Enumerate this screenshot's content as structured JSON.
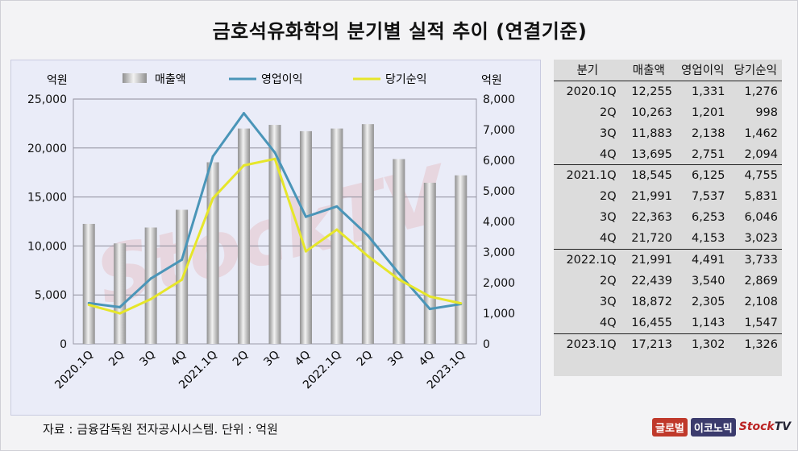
{
  "title": "금호석유화학의 분기별 실적 추이 (연결기준)",
  "source": "자료 : 금융감독원 전자공시시스템. 단위 : 억원",
  "logos": {
    "first": "글로벌",
    "second": "이코노믹",
    "stock": "Stock",
    "tv": "TV"
  },
  "watermark": "StockTV",
  "table": {
    "headers": [
      "분기",
      "매출액",
      "영업이익",
      "당기순익"
    ],
    "rows": [
      [
        "2020.1Q",
        "12,255",
        "1,331",
        "1,276"
      ],
      [
        "2Q",
        "10,263",
        "1,201",
        "998"
      ],
      [
        "3Q",
        "11,883",
        "2,138",
        "1,462"
      ],
      [
        "4Q",
        "13,695",
        "2,751",
        "2,094"
      ],
      [
        "2021.1Q",
        "18,545",
        "6,125",
        "4,755"
      ],
      [
        "2Q",
        "21,991",
        "7,537",
        "5,831"
      ],
      [
        "3Q",
        "22,363",
        "6,253",
        "6,046"
      ],
      [
        "4Q",
        "21,720",
        "4,153",
        "3,023"
      ],
      [
        "2022.1Q",
        "21,991",
        "4,491",
        "3,733"
      ],
      [
        "2Q",
        "22,439",
        "3,540",
        "2,869"
      ],
      [
        "3Q",
        "18,872",
        "2,305",
        "2,108"
      ],
      [
        "4Q",
        "16,455",
        "1,143",
        "1,547"
      ],
      [
        "2023.1Q",
        "17,213",
        "1,302",
        "1,326"
      ]
    ]
  },
  "chart_data": {
    "type": "bar",
    "categories": [
      "2020.1Q",
      "2Q",
      "3Q",
      "4Q",
      "2021.1Q",
      "2Q",
      "3Q",
      "4Q",
      "2022.1Q",
      "2Q",
      "3Q",
      "4Q",
      "2023.1Q"
    ],
    "series": [
      {
        "name": "매출액",
        "type": "bar",
        "axis": "left",
        "color": "#b8b8b8",
        "values": [
          12255,
          10263,
          11883,
          13695,
          18545,
          21991,
          22363,
          21720,
          21991,
          22439,
          18872,
          16455,
          17213
        ]
      },
      {
        "name": "영업이익",
        "type": "line",
        "axis": "right",
        "color": "#4a95b8",
        "values": [
          1331,
          1201,
          2138,
          2751,
          6125,
          7537,
          6253,
          4153,
          4491,
          3540,
          2305,
          1143,
          1302
        ]
      },
      {
        "name": "당기순익",
        "type": "line",
        "axis": "right",
        "color": "#e6e62a",
        "values": [
          1276,
          998,
          1462,
          2094,
          4755,
          5831,
          6046,
          3023,
          3733,
          2869,
          2108,
          1547,
          1326
        ]
      }
    ],
    "left_axis": {
      "label": "억원",
      "range": [
        0,
        25000
      ],
      "ticks": [
        "0",
        "5,000",
        "10,000",
        "15,000",
        "20,000",
        "25,000"
      ]
    },
    "right_axis": {
      "label": "억원",
      "range": [
        0,
        8000
      ],
      "ticks": [
        "0",
        "1,000",
        "2,000",
        "3,000",
        "4,000",
        "5,000",
        "6,000",
        "7,000",
        "8,000"
      ]
    },
    "grid": true,
    "legend_position": "top"
  }
}
